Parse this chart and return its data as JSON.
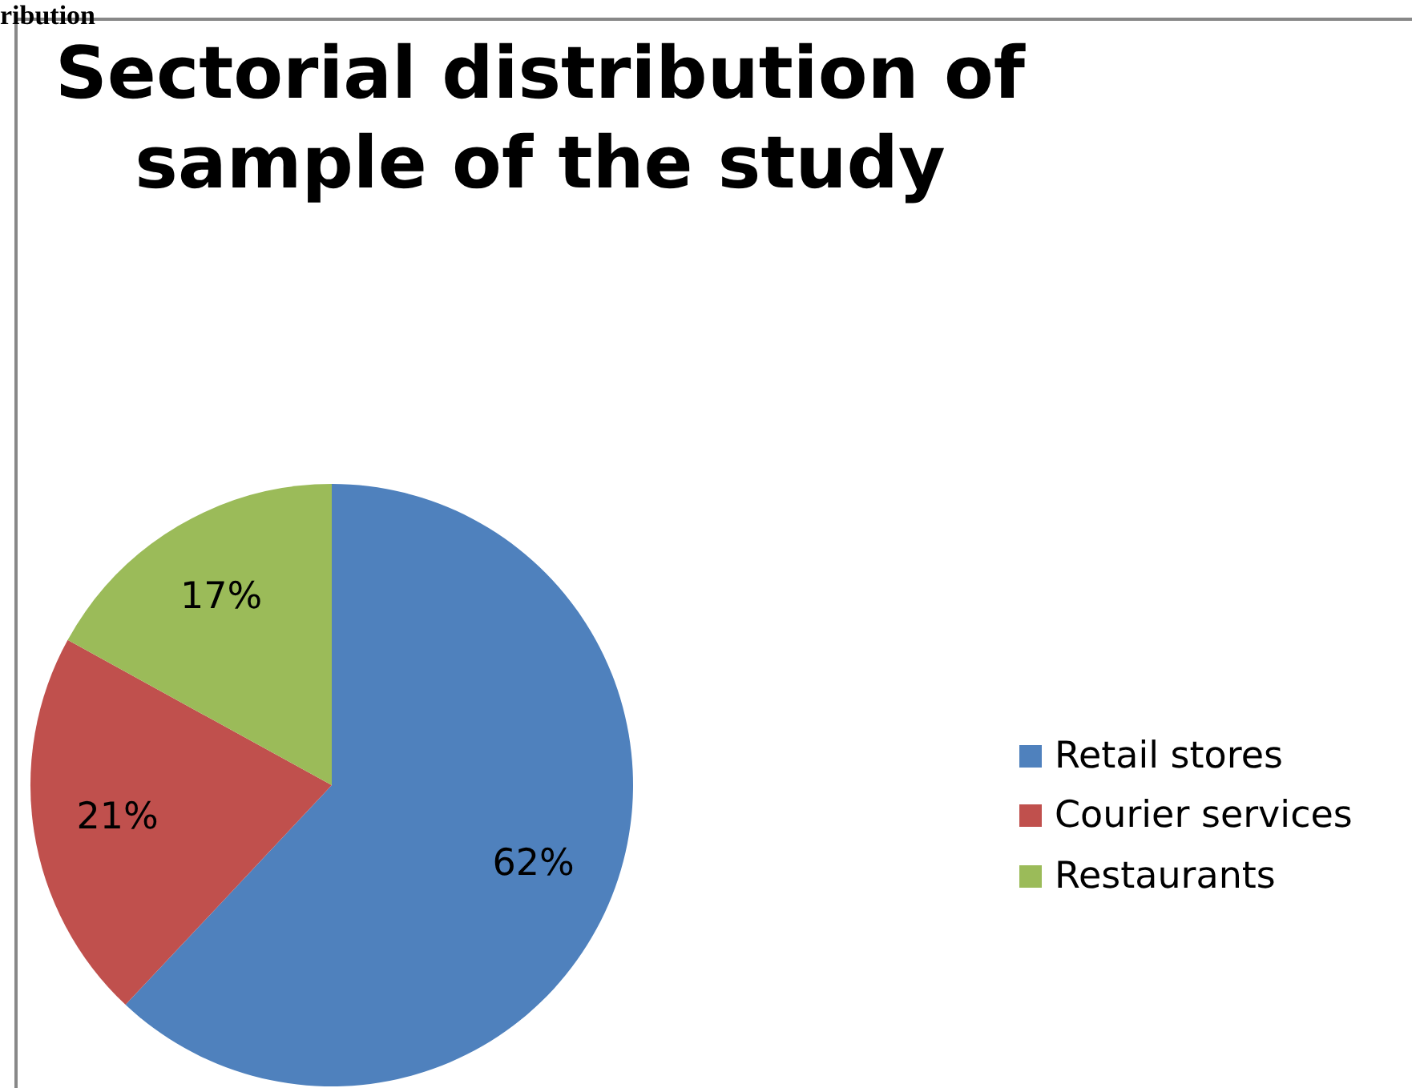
{
  "chart_data": {
    "type": "pie",
    "title": "Sectorial distribution of sample of the study",
    "categories": [
      "Retail stores",
      "Courier services",
      "Restaurants"
    ],
    "values": [
      62,
      21,
      17
    ],
    "colors": [
      "#4f81bd",
      "#c0504d",
      "#9bbb59"
    ],
    "value_labels": [
      "62%",
      "21%",
      "17%"
    ],
    "legend": "right",
    "annotations": [
      "ribution"
    ]
  }
}
